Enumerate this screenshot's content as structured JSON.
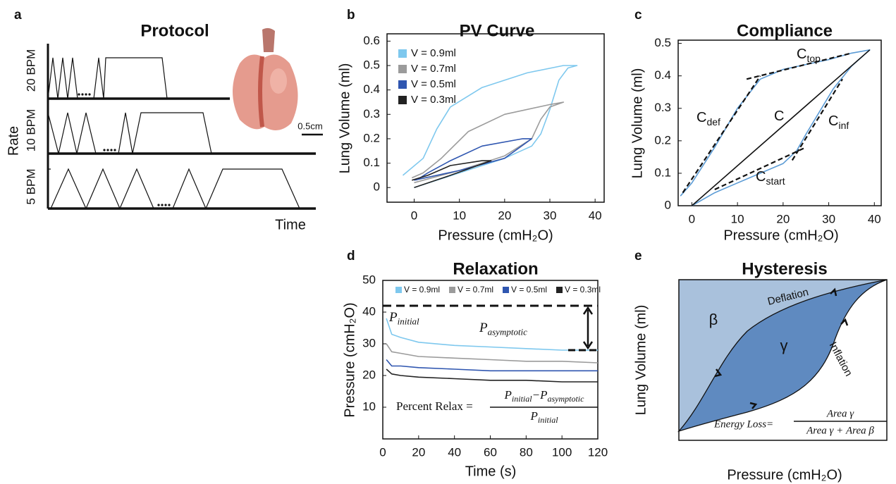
{
  "panel_a": {
    "letter": "a",
    "title": "Protocol",
    "rates": [
      "20 BPM",
      "10 BPM",
      "5 BPM"
    ],
    "y_label": "Rate",
    "x_label": "Time",
    "scale_bar": "0.5cm"
  },
  "panel_e": {
    "letter": "e",
    "title": "Hysteresis",
    "y_label": "Lung Volume (ml)",
    "x_label": "Pressure (cmH₂O)",
    "beta": "β",
    "gamma": "γ",
    "deflation": "Deflation",
    "inflation": "Inflation",
    "formula_lhs": "Energy Loss=",
    "numerator": "Area γ",
    "denominator": "Area γ  + Area β"
  },
  "chart_data": [
    {
      "panel_label": "b",
      "type": "line",
      "title": "PV Curve",
      "x_label": "Pressure (cmH₂O)",
      "y_label": "Lung Volume (ml)",
      "xlim": [
        -6,
        42
      ],
      "ylim": [
        -0.06,
        0.63
      ],
      "xticks": [
        0,
        10,
        20,
        30,
        40
      ],
      "yticks": [
        0,
        0.1,
        0.2,
        0.3,
        0.4,
        0.5,
        0.6
      ],
      "legend": "upper left",
      "series": [
        {
          "name": "V = 0.9ml",
          "color": "#7ec8ee",
          "x": [
            0,
            5,
            10,
            20,
            26,
            28,
            30,
            32,
            34,
            36,
            33,
            25,
            15,
            8,
            5,
            2,
            -2.5
          ],
          "values": [
            0,
            0.03,
            0.06,
            0.12,
            0.17,
            0.22,
            0.32,
            0.44,
            0.49,
            0.5,
            0.5,
            0.47,
            0.41,
            0.33,
            0.24,
            0.12,
            0.05
          ]
        },
        {
          "name": "V = 0.7ml",
          "color": "#9b9b9b",
          "x": [
            0,
            10,
            20,
            26,
            28,
            30,
            33,
            30,
            20,
            12,
            6,
            2,
            -0.5
          ],
          "values": [
            0.02,
            0.07,
            0.13,
            0.2,
            0.28,
            0.33,
            0.35,
            0.34,
            0.3,
            0.23,
            0.12,
            0.06,
            0.04
          ]
        },
        {
          "name": "V = 0.5ml",
          "color": "#2f56b0",
          "x": [
            0,
            10,
            20,
            26,
            24,
            15,
            8,
            3,
            0.5
          ],
          "values": [
            0.03,
            0.07,
            0.12,
            0.2,
            0.2,
            0.17,
            0.11,
            0.06,
            0.03
          ]
        },
        {
          "name": "V = 0.3ml",
          "color": "#222222",
          "x": [
            0,
            8,
            14,
            17,
            15,
            8,
            3,
            -0.5
          ],
          "values": [
            0,
            0.05,
            0.09,
            0.11,
            0.11,
            0.09,
            0.05,
            0.03
          ]
        }
      ]
    },
    {
      "panel_label": "c",
      "type": "line",
      "title": "Compliance",
      "x_label": "Pressure (cmH₂O)",
      "y_label": "Lung Volume (ml)",
      "xlim": [
        -3,
        41.5
      ],
      "ylim": [
        0,
        0.51
      ],
      "xticks": [
        0,
        10,
        20,
        30,
        40
      ],
      "yticks": [
        0,
        0.1,
        0.2,
        0.3,
        0.4,
        0.5
      ],
      "series": [
        {
          "color": "#5b9bd5",
          "x": [
            0,
            5,
            10,
            15,
            20,
            23,
            25,
            28,
            31,
            35,
            39,
            35,
            30,
            20,
            15,
            10,
            5,
            0,
            -2.5
          ],
          "values": [
            0,
            0.04,
            0.07,
            0.1,
            0.13,
            0.17,
            0.22,
            0.29,
            0.36,
            0.43,
            0.48,
            0.47,
            0.45,
            0.42,
            0.39,
            0.3,
            0.18,
            0.07,
            0.03
          ]
        },
        {
          "color": "#111111",
          "x": [
            0,
            39
          ],
          "values": [
            0,
            0.48
          ]
        },
        {
          "color": "#111111",
          "dashed": true,
          "x": [
            -2,
            15
          ],
          "values": [
            0.04,
            0.4
          ]
        },
        {
          "color": "#111111",
          "dashed": true,
          "x": [
            12,
            35
          ],
          "values": [
            0.39,
            0.47
          ]
        },
        {
          "color": "#111111",
          "dashed": true,
          "x": [
            22,
            33
          ],
          "values": [
            0.14,
            0.39
          ]
        },
        {
          "color": "#111111",
          "dashed": true,
          "x": [
            5,
            25
          ],
          "values": [
            0.05,
            0.18
          ]
        }
      ],
      "annotations": [
        {
          "symbol": "C",
          "subscript": "def"
        },
        {
          "symbol": "C",
          "subscript": "top"
        },
        {
          "symbol": "C"
        },
        {
          "symbol": "C",
          "subscript": "inf"
        },
        {
          "symbol": "C",
          "subscript": "start"
        }
      ]
    },
    {
      "panel_label": "d",
      "type": "line",
      "title": "Relaxation",
      "x_label": "Time (s)",
      "y_label": "Pressure (cmH₂O)",
      "xlim": [
        0,
        120
      ],
      "ylim": [
        0,
        50
      ],
      "xticks": [
        0,
        20,
        40,
        60,
        80,
        100,
        120
      ],
      "yticks": [
        10,
        20,
        30,
        40,
        50
      ],
      "legend": "upper center",
      "series": [
        {
          "name": "V = 0.9ml",
          "color": "#7ec8ee",
          "x": [
            2,
            5,
            10,
            20,
            40,
            60,
            80,
            100,
            120
          ],
          "values": [
            38,
            33,
            32,
            30.5,
            29.5,
            29,
            28.5,
            28,
            28
          ]
        },
        {
          "name": "V = 0.7ml",
          "color": "#9b9b9b",
          "x": [
            2,
            5,
            10,
            20,
            40,
            60,
            80,
            100,
            120
          ],
          "values": [
            30,
            27.5,
            27,
            26,
            25.5,
            25,
            24.5,
            24.5,
            24
          ]
        },
        {
          "name": "V = 0.5ml",
          "color": "#2f56b0",
          "x": [
            2,
            5,
            10,
            20,
            40,
            60,
            80,
            100,
            120
          ],
          "values": [
            25,
            23,
            23,
            22.5,
            22,
            21.5,
            21.5,
            21.5,
            21.5
          ]
        },
        {
          "name": "V = 0.3ml",
          "color": "#222222",
          "x": [
            2,
            5,
            10,
            20,
            40,
            60,
            80,
            100,
            120
          ],
          "values": [
            22,
            20.5,
            20,
            19.5,
            19,
            18.5,
            18.5,
            18,
            18
          ]
        }
      ],
      "p_initial_level": 42,
      "p_asymptotic_level": 28,
      "annotations": [
        {
          "symbol": "P",
          "subscript": "initial"
        },
        {
          "symbol": "P",
          "subscript": "asymptotic"
        }
      ],
      "formula": {
        "lhs": "Percent Relax =",
        "num_a": {
          "symbol": "P",
          "subscript": "initial"
        },
        "minus": "−",
        "num_b": {
          "symbol": "P",
          "subscript": "asymptotic"
        },
        "den": {
          "symbol": "P",
          "subscript": "initial"
        }
      }
    }
  ]
}
